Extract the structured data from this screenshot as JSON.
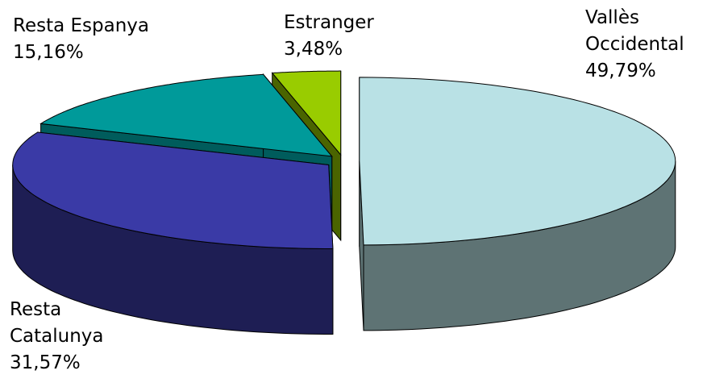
{
  "chart_data": {
    "type": "pie3d",
    "categories": [
      "Vallès Occidental",
      "Resta Catalunya",
      "Resta Espanya",
      "Estranger"
    ],
    "values": [
      49.79,
      31.57,
      15.16,
      3.48
    ],
    "value_labels": [
      "49,79%",
      "31,57%",
      "15,16%",
      "3,48%"
    ],
    "colors": [
      "#b9e1e5",
      "#3a3aa6",
      "#009a9a",
      "#99cc00"
    ],
    "side_colors": [
      "#5e7374",
      "#1e1e54",
      "#005c5c",
      "#4a6400"
    ]
  }
}
